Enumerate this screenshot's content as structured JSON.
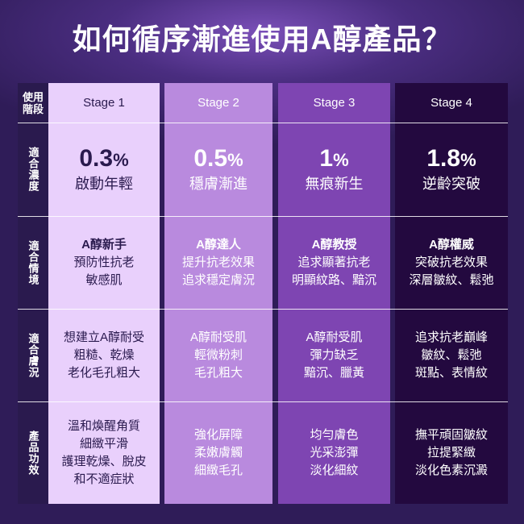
{
  "title": "如何循序漸進使用A醇產品？",
  "row_labels": [
    "使用階段",
    "適合濃度",
    "適合情境",
    "適合膚況",
    "產品功效"
  ],
  "row_labels_header": [
    "使用",
    "階段"
  ],
  "stages": [
    {
      "name": "Stage 1",
      "conc_num": "0.3",
      "conc_unit": "%",
      "conc_desc": "啟動年輕",
      "scenario_title": "A醇新手",
      "scenario": [
        "預防性抗老",
        "敏感肌"
      ],
      "skin": [
        "想建立A醇耐受",
        "粗糙、乾燥",
        "老化毛孔粗大"
      ],
      "effect": [
        "溫和煥醒角質",
        "細緻平滑",
        "護理乾燥、脫皮",
        "和不適症狀"
      ]
    },
    {
      "name": "Stage 2",
      "conc_num": "0.5",
      "conc_unit": "%",
      "conc_desc": "穩膚漸進",
      "scenario_title": "A醇達人",
      "scenario": [
        "提升抗老效果",
        "追求穩定膚況"
      ],
      "skin": [
        "A醇耐受肌",
        "輕微粉刺",
        "毛孔粗大"
      ],
      "effect": [
        "強化屏障",
        "柔嫩膚觸",
        "細緻毛孔"
      ]
    },
    {
      "name": "Stage 3",
      "conc_num": "1",
      "conc_unit": "%",
      "conc_desc": "無痕新生",
      "scenario_title": "A醇教授",
      "scenario": [
        "追求顯著抗老",
        "明顯紋路、黯沉"
      ],
      "skin": [
        "A醇耐受肌",
        "彈力缺乏",
        "黯沉、臘黃"
      ],
      "effect": [
        "均勻膚色",
        "光采澎彈",
        "淡化細紋"
      ]
    },
    {
      "name": "Stage 4",
      "conc_num": "1.8",
      "conc_unit": "%",
      "conc_desc": "逆齡突破",
      "scenario_title": "A醇權威",
      "scenario": [
        "突破抗老效果",
        "深層皺紋、鬆弛"
      ],
      "skin": [
        "追求抗老巔峰",
        "皺紋、鬆弛",
        "斑點、表情紋"
      ],
      "effect": [
        "撫平頑固皺紋",
        "拉提緊緻",
        "淡化色素沉澱"
      ]
    }
  ],
  "colors": {
    "stage1": "#e9d0fc",
    "stage2": "#b98ade",
    "stage3": "#7e45b2",
    "stage4": "#23093f",
    "label_column": "#2a1a4e"
  }
}
